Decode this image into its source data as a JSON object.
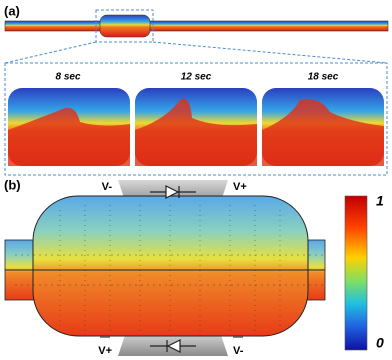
{
  "panel_a": {
    "label": "(a)",
    "snapshots": [
      "8 sec",
      "12 sec",
      "18 sec"
    ]
  },
  "panel_b": {
    "label": "(b)",
    "electrodes_top": [
      "V-",
      "V+"
    ],
    "electrodes_bottom": [
      "V+",
      "V-"
    ],
    "colorbar": {
      "max": "1",
      "min": "0"
    }
  }
}
